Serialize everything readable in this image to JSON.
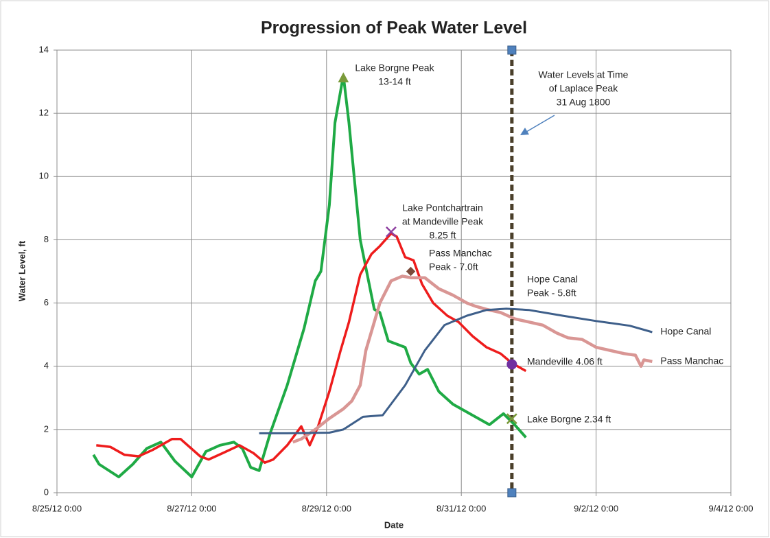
{
  "chart_data": {
    "type": "line",
    "title": "Progression of Peak Water Level",
    "xlabel": "Date",
    "ylabel": "Water Level, ft",
    "xlim": [
      "8/25/12 0:00",
      "9/4/12 0:00"
    ],
    "xticks": [
      "8/25/12 0:00",
      "8/27/12 0:00",
      "8/29/12 0:00",
      "8/31/12 0:00",
      "9/2/12 0:00",
      "9/4/12 0:00"
    ],
    "ylim": [
      0,
      14
    ],
    "yticks": [
      0,
      2,
      4,
      6,
      8,
      10,
      12,
      14
    ],
    "grid": true,
    "series": [
      {
        "color": "#1faa45",
        "x": [
          "8/25/12 13:00",
          "8/25/12 15:00",
          "8/25/12 22:00",
          "8/26/12 3:00",
          "8/26/12 8:00",
          "8/26/12 13:00",
          "8/26/12 18:00",
          "8/27/12 0:00",
          "8/27/12 5:00",
          "8/27/12 10:00",
          "8/27/12 15:00",
          "8/27/12 18:00",
          "8/27/12 21:00",
          "8/28/12 0:00",
          "8/28/12 4:00",
          "8/28/12 10:00",
          "8/28/12 16:00",
          "8/28/12 20:00",
          "8/28/12 22:00",
          "8/29/12 1:00",
          "8/29/12 3:00",
          "8/29/12 6:00",
          "8/29/12 8:00",
          "8/29/12 12:00",
          "8/29/12 17:00",
          "8/29/12 19:00",
          "8/29/12 22:00",
          "8/30/12 4:00",
          "8/30/12 6:00",
          "8/30/12 9:00",
          "8/30/12 12:00",
          "8/30/12 16:00",
          "8/30/12 21:00",
          "8/31/12 4:00",
          "8/31/12 10:00",
          "8/31/12 15:00",
          "8/31/12 19:00",
          "8/31/12 23:00"
        ],
        "values": [
          1.2,
          0.9,
          0.5,
          0.9,
          1.4,
          1.6,
          1.0,
          0.5,
          1.3,
          1.5,
          1.6,
          1.4,
          0.8,
          0.7,
          1.9,
          3.4,
          5.2,
          6.7,
          7.0,
          9.1,
          11.7,
          13.2,
          11.7,
          8.0,
          5.8,
          5.7,
          4.8,
          4.6,
          4.1,
          3.75,
          3.9,
          3.2,
          2.8,
          2.45,
          2.15,
          2.5,
          2.15,
          1.75
        ]
      },
      {
        "color": "#ee1c1c",
        "x": [
          "8/25/12 14:00",
          "8/25/12 19:00",
          "8/26/12 0:00",
          "8/26/12 5:00",
          "8/26/12 10:00",
          "8/26/12 17:00",
          "8/26/12 20:00",
          "8/27/12 3:00",
          "8/27/12 6:00",
          "8/27/12 11:00",
          "8/27/12 17:00",
          "8/27/12 22:00",
          "8/28/12 2:00",
          "8/28/12 5:00",
          "8/28/12 10:00",
          "8/28/12 15:00",
          "8/28/12 18:00",
          "8/28/12 21:00",
          "8/29/12 1:00",
          "8/29/12 5:00",
          "8/29/12 8:00",
          "8/29/12 12:00",
          "8/29/12 16:00",
          "8/29/12 19:00",
          "8/29/12 23:00",
          "8/30/12 1:00",
          "8/30/12 4:00",
          "8/30/12 7:00",
          "8/30/12 10:00",
          "8/30/12 14:00",
          "8/30/12 19:00",
          "8/30/12 23:00",
          "8/31/12 4:00",
          "8/31/12 9:00",
          "8/31/12 14:00",
          "8/31/12 18:00",
          "8/31/12 23:00"
        ],
        "values": [
          1.5,
          1.45,
          1.2,
          1.15,
          1.35,
          1.7,
          1.7,
          1.15,
          1.05,
          1.25,
          1.5,
          1.25,
          0.95,
          1.05,
          1.5,
          2.1,
          1.5,
          2.1,
          3.2,
          4.5,
          5.4,
          6.9,
          7.55,
          7.8,
          8.2,
          8.1,
          7.45,
          7.35,
          6.6,
          6.0,
          5.6,
          5.4,
          4.95,
          4.6,
          4.4,
          4.1,
          3.85
        ]
      },
      {
        "name": "Pass Manchac",
        "color": "#d99694",
        "x": [
          "8/28/12 12:00",
          "8/28/12 15:00",
          "8/28/12 20:00",
          "8/29/12 1:00",
          "8/29/12 6:00",
          "8/29/12 9:00",
          "8/29/12 12:00",
          "8/29/12 14:00",
          "8/29/12 17:00",
          "8/29/12 19:00",
          "8/29/12 23:00",
          "8/30/12 3:00",
          "8/30/12 6:00",
          "8/30/12 11:00",
          "8/30/12 16:00",
          "8/30/12 21:00",
          "8/31/12 2:00",
          "8/31/12 5:00",
          "8/31/12 9:00",
          "8/31/12 14:00",
          "8/31/12 19:00",
          "9/1/12 0:00",
          "9/1/12 5:00",
          "9/1/12 10:00",
          "9/1/12 14:00",
          "9/1/12 19:00",
          "9/2/12 0:00",
          "9/2/12 5:00",
          "9/2/12 10:00",
          "9/2/12 14:00",
          "9/2/12 16:00",
          "9/2/12 17:00",
          "9/2/12 20:00"
        ],
        "values": [
          1.6,
          1.7,
          2.0,
          2.35,
          2.65,
          2.9,
          3.4,
          4.5,
          5.4,
          6.0,
          6.7,
          6.85,
          6.8,
          6.8,
          6.45,
          6.25,
          6.0,
          5.9,
          5.8,
          5.7,
          5.5,
          5.4,
          5.3,
          5.05,
          4.9,
          4.85,
          4.6,
          4.5,
          4.4,
          4.35,
          4.0,
          4.2,
          4.15
        ]
      },
      {
        "name": "Hope Canal",
        "color": "#3e5f8a",
        "x": [
          "8/28/12 0:00",
          "8/28/12 10:00",
          "8/29/12 1:00",
          "8/29/12 6:00",
          "8/29/12 13:00",
          "8/29/12 20:00",
          "8/30/12 4:00",
          "8/30/12 11:00",
          "8/30/12 18:00",
          "8/31/12 2:00",
          "8/31/12 9:00",
          "8/31/12 16:00",
          "9/1/12 0:00",
          "9/1/12 12:00",
          "9/2/12 0:00",
          "9/2/12 12:00",
          "9/2/12 20:00"
        ],
        "values": [
          1.88,
          1.88,
          1.9,
          2.0,
          2.4,
          2.45,
          3.4,
          4.5,
          5.3,
          5.6,
          5.78,
          5.82,
          5.78,
          5.6,
          5.43,
          5.28,
          5.08
        ]
      }
    ],
    "vline": {
      "x": "8/31/12 18:00",
      "color": "#4a3f2a"
    },
    "annotations": [
      {
        "text": [
          "Lake Borgne Peak",
          "13-14 ft"
        ],
        "x": "8/29/12 6:00",
        "y": 13.1,
        "marker": "triangle",
        "color": "#7a9a3a"
      },
      {
        "text": [
          "Lake Pontchartrain",
          "at Mandeville Peak",
          "8.25 ft"
        ],
        "x": "8/29/12 23:00",
        "y": 8.25,
        "marker": "x",
        "color": "#8e3fa0"
      },
      {
        "text": [
          "Pass Manchac",
          "Peak - 7.0ft"
        ],
        "x": "8/30/12 6:00",
        "y": 7.0,
        "marker": "diamond",
        "color": "#7a4a3a"
      },
      {
        "text": [
          "Hope Canal",
          "Peak - 5.8ft"
        ]
      },
      {
        "text": [
          "Water Levels at Time",
          "of Laplace Peak",
          "31 Aug 1800"
        ]
      },
      {
        "text": [
          "Mandeville 4.06 ft"
        ],
        "x": "8/31/12 18:00",
        "y": 4.06,
        "marker": "circle",
        "color": "#7030a0"
      },
      {
        "text": [
          "Lake Borgne 2.34 ft"
        ],
        "x": "8/31/12 18:00",
        "y": 2.34,
        "marker": "x",
        "color": "#7a9a3a"
      }
    ]
  }
}
